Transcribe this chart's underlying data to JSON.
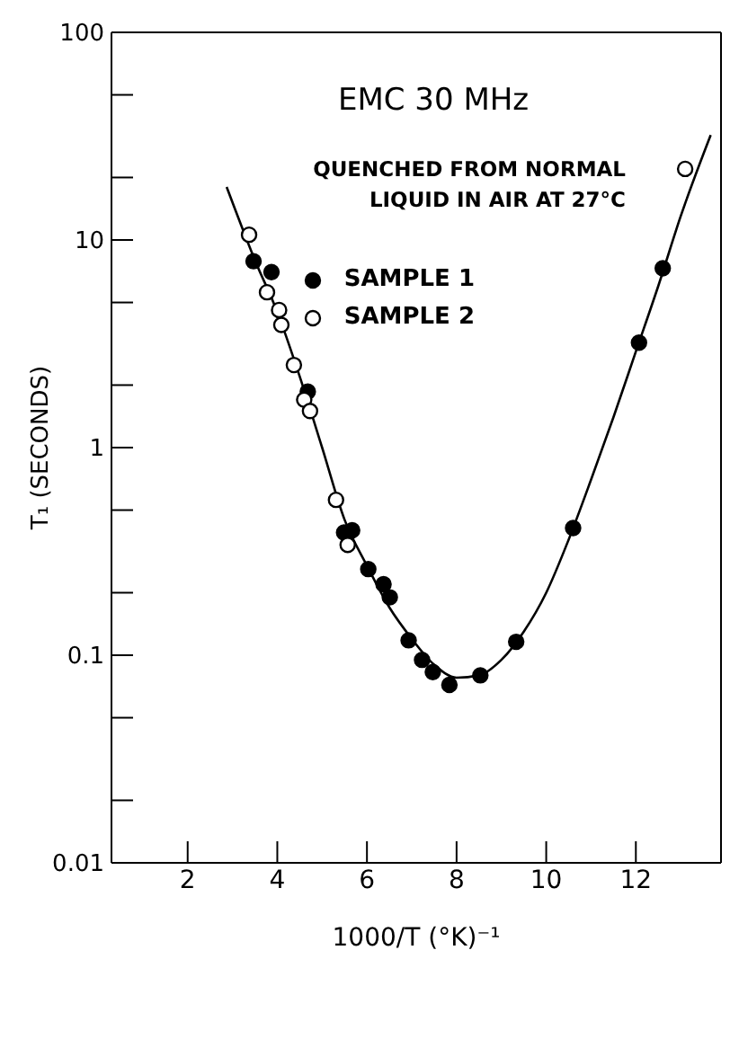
{
  "chart_data": {
    "type": "scatter",
    "xlabel": "1000/T (°K)⁻¹",
    "ylabel": "T₁ (SECONDS)",
    "annotations": [
      "EMC 30 MHz",
      "QUENCHED FROM NORMAL LIQUID IN AIR AT 27°C"
    ],
    "log": "y",
    "xlim": [
      0.3,
      13.9
    ],
    "xticks": [
      2,
      4,
      6,
      8,
      10,
      12
    ],
    "ylim": [
      0.01,
      100
    ],
    "yticks": [
      0.01,
      {
        "value": 0.02,
        "label": null
      },
      {
        "value": 0.05,
        "label": null
      },
      0.1,
      {
        "value": 0.2,
        "label": null
      },
      {
        "value": 0.5,
        "label": null
      },
      1,
      {
        "value": 2,
        "label": null
      },
      {
        "value": 5,
        "label": null
      },
      10,
      {
        "value": 20,
        "label": null
      },
      {
        "value": 50,
        "label": null
      },
      100
    ],
    "legend": "top right",
    "marker": "circle",
    "series": [
      {
        "name": "SAMPLE 1",
        "color": "#000000",
        "x": [
          3.47,
          3.87,
          4.68,
          5.49,
          5.67,
          6.03,
          6.37,
          6.51,
          6.93,
          7.23,
          7.47,
          7.84,
          8.53,
          9.33,
          10.6,
          12.07,
          12.6
        ],
        "values": [
          7.9,
          7.0,
          1.86,
          0.39,
          0.4,
          0.26,
          0.22,
          0.19,
          0.118,
          0.095,
          0.083,
          0.072,
          0.08,
          0.116,
          0.41,
          3.2,
          7.3
        ]
      },
      {
        "name": "SAMPLE 2",
        "color": "#ffffff",
        "x": [
          3.37,
          3.77,
          4.04,
          4.09,
          4.37,
          4.6,
          4.73,
          5.31,
          5.57,
          13.1
        ],
        "values": [
          10.6,
          5.6,
          4.6,
          3.9,
          2.5,
          1.7,
          1.5,
          0.56,
          0.34,
          22
        ]
      },
      {
        "type": "line",
        "color": "#000000",
        "marker": "none",
        "x": [
          2.87,
          3.5,
          4,
          4.5,
          5,
          5.5,
          6,
          6.5,
          7,
          7.5,
          8,
          8.5,
          9,
          9.5,
          10,
          10.5,
          11,
          11.5,
          12,
          12.5,
          13,
          13.67
        ],
        "values": [
          18,
          8,
          4.5,
          2.2,
          1.0,
          0.45,
          0.27,
          0.17,
          0.12,
          0.09,
          0.078,
          0.08,
          0.095,
          0.13,
          0.2,
          0.36,
          0.7,
          1.4,
          2.9,
          6,
          13,
          32
        ]
      }
    ]
  }
}
